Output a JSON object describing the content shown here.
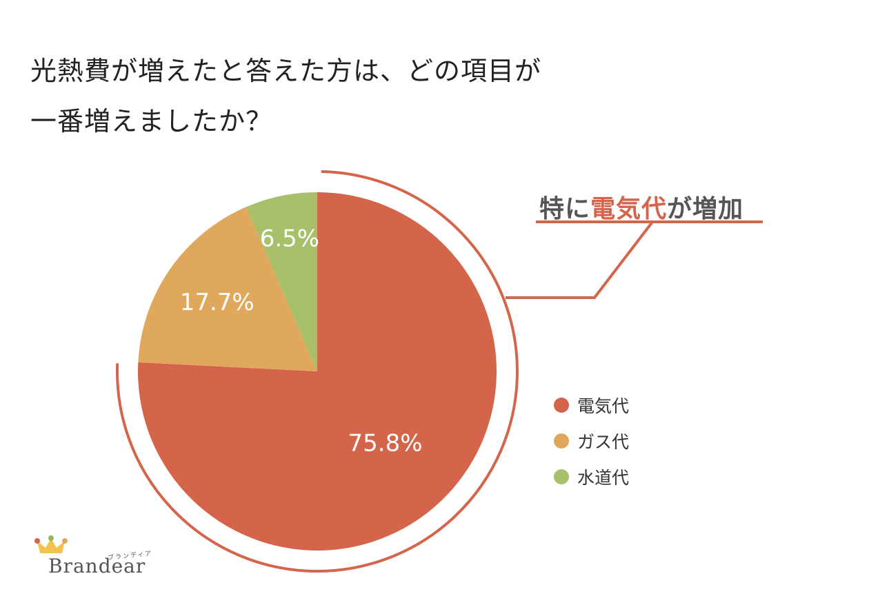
{
  "title": {
    "line1": "光熱費が増えたと答えた方は、どの項目が",
    "line2": "一番増えましたか？"
  },
  "callout": {
    "prefix": "特に",
    "highlight": "電気代",
    "suffix": "が増加"
  },
  "colors": {
    "electricity": "#d4644a",
    "gas": "#e0a85c",
    "water": "#a8c06a",
    "accent": "#d4644a"
  },
  "chart_data": {
    "type": "pie",
    "categories": [
      "電気代",
      "ガス代",
      "水道代"
    ],
    "values": [
      75.8,
      17.7,
      6.5
    ],
    "value_labels": [
      "75.8%",
      "17.7%",
      "6.5%"
    ],
    "legend_position": "right",
    "start": "12 o'clock, clockwise"
  },
  "logo": {
    "text": "Brandear",
    "kana": "ブランディア",
    "icon": "crown-icon"
  }
}
